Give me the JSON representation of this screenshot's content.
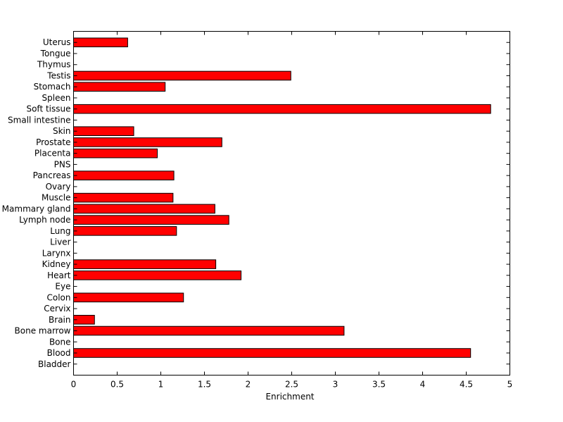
{
  "chart_data": {
    "type": "bar",
    "orientation": "horizontal",
    "categories": [
      "Bladder",
      "Blood",
      "Bone",
      "Bone marrow",
      "Brain",
      "Cervix",
      "Colon",
      "Eye",
      "Heart",
      "Kidney",
      "Larynx",
      "Liver",
      "Lung",
      "Lymph node",
      "Mammary gland",
      "Muscle",
      "Ovary",
      "Pancreas",
      "PNS",
      "Placenta",
      "Prostate",
      "Skin",
      "Small intestine",
      "Soft tissue",
      "Spleen",
      "Stomach",
      "Testis",
      "Thymus",
      "Tongue",
      "Uterus"
    ],
    "values": [
      0,
      4.55,
      0,
      3.1,
      0.24,
      0,
      1.26,
      0,
      1.92,
      1.63,
      0,
      0,
      1.18,
      1.78,
      1.62,
      1.14,
      0,
      1.15,
      0,
      0.96,
      1.7,
      0.69,
      0,
      4.78,
      0,
      1.05,
      2.49,
      0,
      0,
      0.62
    ],
    "xlabel": "Enrichment",
    "ylabel": "",
    "title": "",
    "xlim": [
      0,
      5
    ],
    "xticks": [
      "0",
      "0.5",
      "1",
      "1.5",
      "2",
      "2.5",
      "3",
      "3.5",
      "4",
      "4.5",
      "5"
    ],
    "grid": false,
    "colors": {
      "bar_fill": "#ff0000",
      "bar_edge": "#000000"
    }
  }
}
